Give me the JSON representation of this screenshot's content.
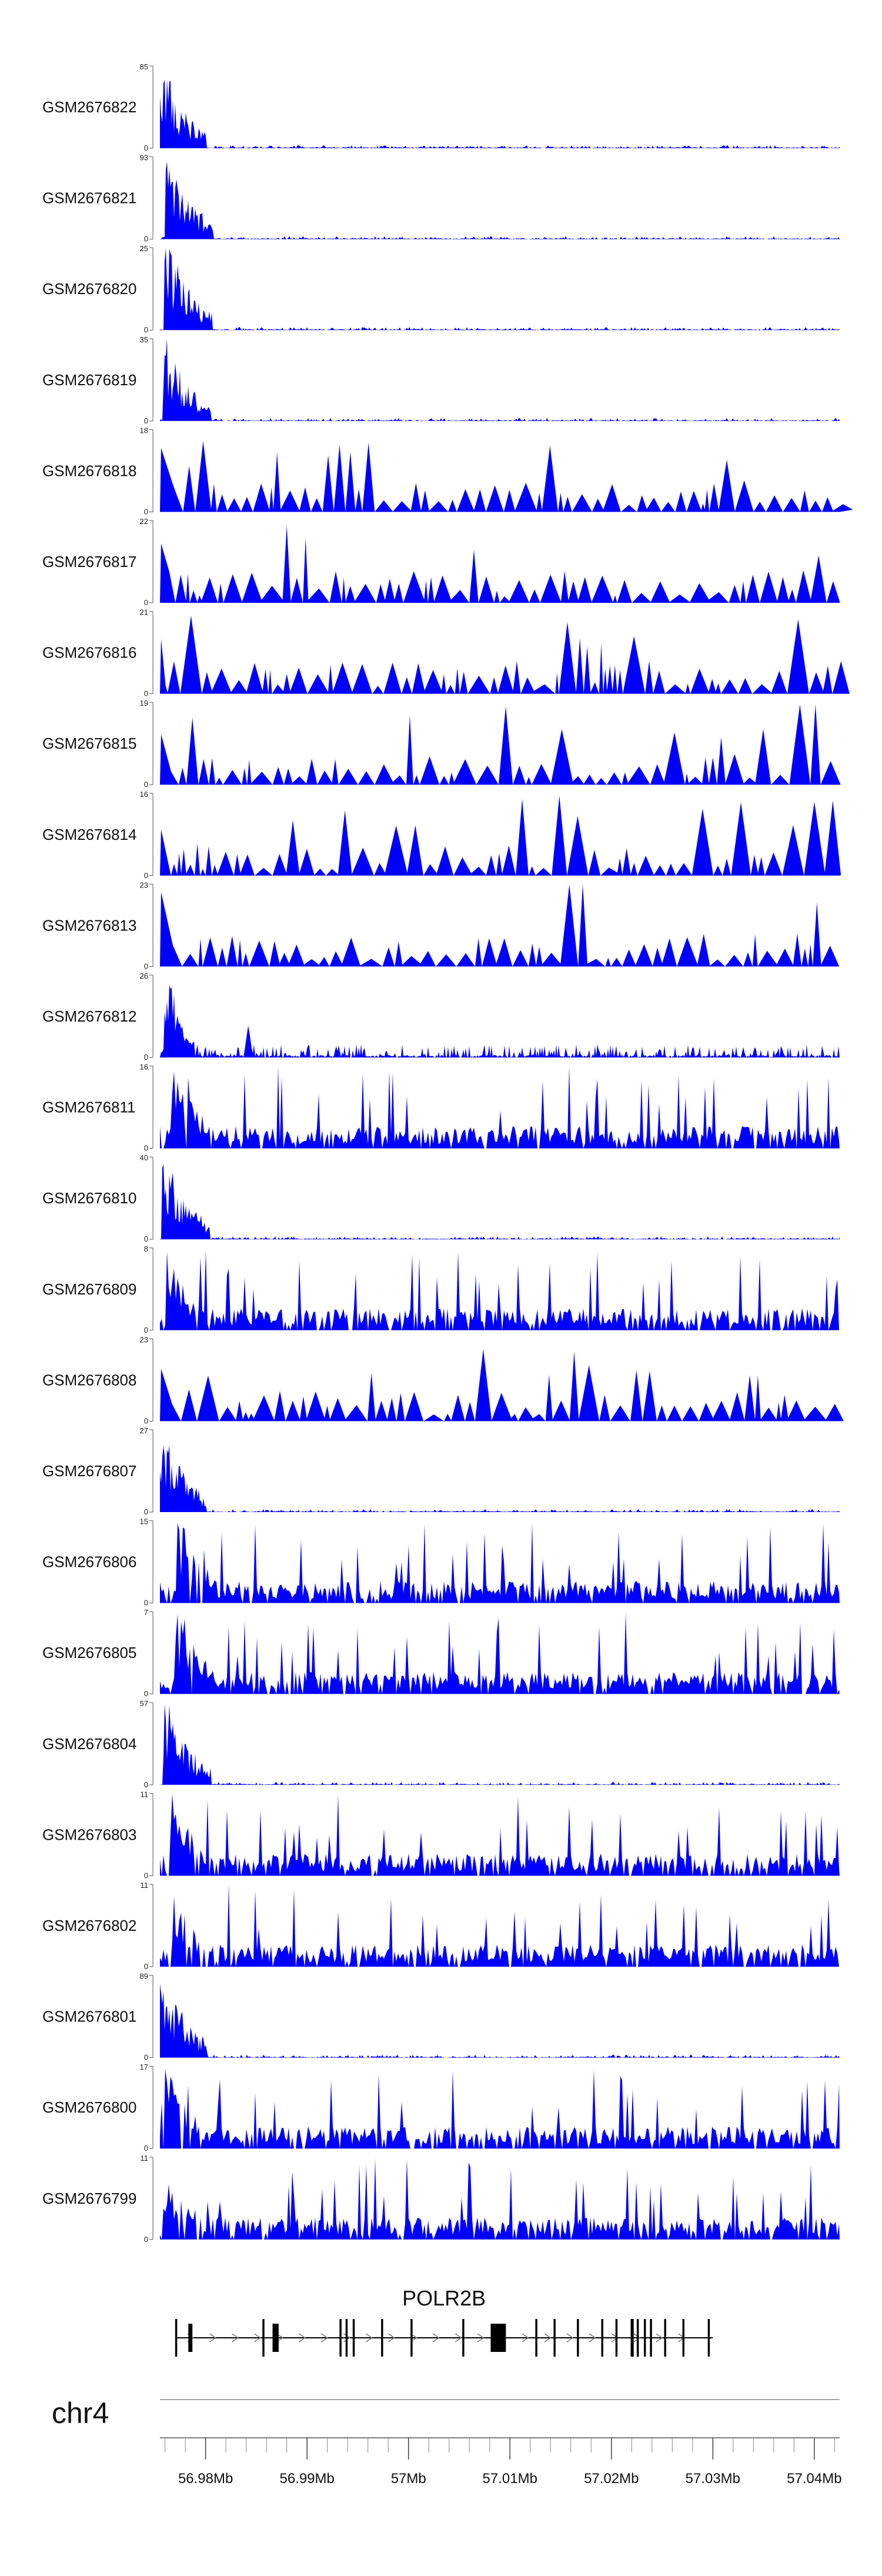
{
  "chart_data": {
    "type": "area",
    "chromosome": "chr4",
    "x_range": [
      56.9755,
      57.0425
    ],
    "x_units": "Mb",
    "grid": false,
    "fill_color": "#0000ff",
    "tracks": [
      {
        "name": "GSM2676822",
        "ymax": 85,
        "ymin": 0,
        "pattern": "early_peak"
      },
      {
        "name": "GSM2676821",
        "ymax": 93,
        "ymin": 0,
        "pattern": "early_peak"
      },
      {
        "name": "GSM2676820",
        "ymax": 25,
        "ymin": 0,
        "pattern": "early_peak"
      },
      {
        "name": "GSM2676819",
        "ymax": 35,
        "ymin": 0,
        "pattern": "early_peak"
      },
      {
        "name": "GSM2676818",
        "ymax": 18,
        "ymin": 0,
        "pattern": "sparse_spikes"
      },
      {
        "name": "GSM2676817",
        "ymax": 22,
        "ymin": 0,
        "pattern": "sparse_spikes"
      },
      {
        "name": "GSM2676816",
        "ymax": 21,
        "ymin": 0,
        "pattern": "sparse_spikes"
      },
      {
        "name": "GSM2676815",
        "ymax": 19,
        "ymin": 0,
        "pattern": "sparse_spikes"
      },
      {
        "name": "GSM2676814",
        "ymax": 16,
        "ymin": 0,
        "pattern": "sparse_spikes"
      },
      {
        "name": "GSM2676813",
        "ymax": 23,
        "ymin": 0,
        "pattern": "sparse_spikes"
      },
      {
        "name": "GSM2676812",
        "ymax": 26,
        "ymin": 0,
        "pattern": "early_moderate"
      },
      {
        "name": "GSM2676811",
        "ymax": 16,
        "ymin": 0,
        "pattern": "dense"
      },
      {
        "name": "GSM2676810",
        "ymax": 40,
        "ymin": 0,
        "pattern": "early_peak"
      },
      {
        "name": "GSM2676809",
        "ymax": 8,
        "ymin": 0,
        "pattern": "dense"
      },
      {
        "name": "GSM2676808",
        "ymax": 23,
        "ymin": 0,
        "pattern": "sparse_spikes"
      },
      {
        "name": "GSM2676807",
        "ymax": 27,
        "ymin": 0,
        "pattern": "early_peak"
      },
      {
        "name": "GSM2676806",
        "ymax": 15,
        "ymin": 0,
        "pattern": "dense"
      },
      {
        "name": "GSM2676805",
        "ymax": 7,
        "ymin": 0,
        "pattern": "dense"
      },
      {
        "name": "GSM2676804",
        "ymax": 57,
        "ymin": 0,
        "pattern": "early_peak"
      },
      {
        "name": "GSM2676803",
        "ymax": 11,
        "ymin": 0,
        "pattern": "dense"
      },
      {
        "name": "GSM2676802",
        "ymax": 11,
        "ymin": 0,
        "pattern": "dense"
      },
      {
        "name": "GSM2676801",
        "ymax": 89,
        "ymin": 0,
        "pattern": "early_peak"
      },
      {
        "name": "GSM2676800",
        "ymax": 17,
        "ymin": 0,
        "pattern": "dense"
      },
      {
        "name": "GSM2676799",
        "ymax": 11,
        "ymin": 0,
        "pattern": "dense"
      }
    ],
    "gene": {
      "name": "POLR2B",
      "start": 56.977,
      "end": 57.03,
      "strand": "+",
      "exons": [
        [
          56.977,
          56.9772
        ],
        [
          56.9783,
          56.9787
        ],
        [
          56.9856,
          56.9858
        ],
        [
          56.9866,
          56.9872
        ],
        [
          56.9932,
          56.9934
        ],
        [
          56.9938,
          56.994
        ],
        [
          56.9945,
          56.9947
        ],
        [
          56.9973,
          56.9975
        ],
        [
          57.0002,
          57.0004
        ],
        [
          57.0053,
          57.0055
        ],
        [
          57.0081,
          57.009
        ],
        [
          57.009,
          57.0096
        ],
        [
          57.0125,
          57.0127
        ],
        [
          57.0143,
          57.0145
        ],
        [
          57.0166,
          57.0168
        ],
        [
          57.019,
          57.0192
        ],
        [
          57.0204,
          57.0206
        ],
        [
          57.0219,
          57.0222
        ],
        [
          57.0225,
          57.0227
        ],
        [
          57.0232,
          57.0234
        ],
        [
          57.0238,
          57.024
        ],
        [
          57.0252,
          57.0254
        ],
        [
          57.027,
          57.0272
        ],
        [
          57.0295,
          57.0297
        ]
      ]
    },
    "axis": {
      "major_ticks": [
        56.98,
        56.99,
        57.0,
        57.01,
        57.02,
        57.03,
        57.04
      ],
      "tick_labels": [
        "56.98Mb",
        "56.99Mb",
        "57Mb",
        "57.01Mb",
        "57.02Mb",
        "57.03Mb",
        "57.04Mb"
      ],
      "minor_tick_step": 0.002
    }
  }
}
